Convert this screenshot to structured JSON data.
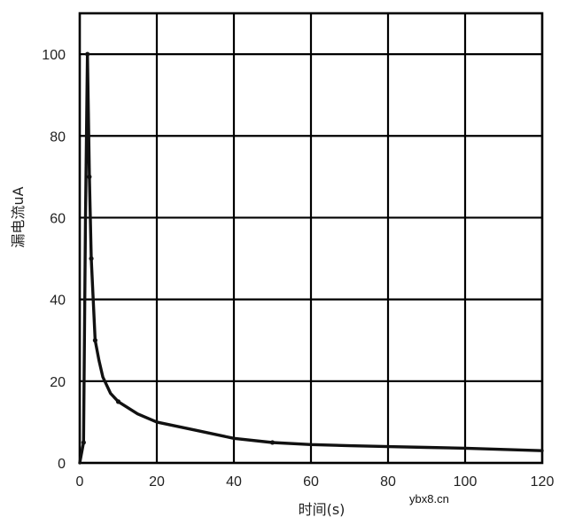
{
  "chart_data": {
    "type": "line",
    "title": "",
    "xlabel": "时间(s)",
    "ylabel": "漏电流uA",
    "xlim": [
      0,
      120
    ],
    "ylim": [
      0,
      110
    ],
    "x_ticks": [
      0,
      20,
      40,
      60,
      80,
      100,
      120
    ],
    "y_ticks": [
      0,
      20,
      40,
      60,
      80,
      100
    ],
    "grid": true,
    "legend": "none",
    "series": [
      {
        "color": "#111111",
        "x": [
          0,
          1,
          1.5,
          2,
          2.5,
          3,
          3.5,
          4,
          5,
          6,
          8,
          10,
          15,
          20,
          30,
          40,
          50,
          60,
          70,
          80,
          90,
          100,
          110,
          120
        ],
        "y": [
          0,
          5,
          60,
          100,
          70,
          50,
          40,
          30,
          25,
          21,
          17,
          15,
          12,
          10,
          8,
          6,
          5,
          4.5,
          4.2,
          4,
          3.8,
          3.6,
          3.3,
          3
        ],
        "marker_x": [
          1,
          2,
          2.5,
          3,
          4,
          10,
          50
        ],
        "marker_y": [
          5,
          100,
          70,
          50,
          30,
          15,
          5
        ]
      }
    ]
  },
  "watermark": "ybx8.cn"
}
